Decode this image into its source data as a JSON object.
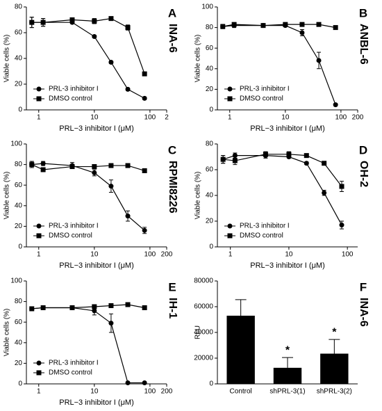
{
  "chart_data": [
    {
      "type": "line",
      "label": "A",
      "title": "INA-6",
      "xlabel": "PRL−3 inhibitor I (μM)",
      "ylabel": "Viable cells (%)",
      "xscale": "log",
      "xlim": [
        0.6,
        200
      ],
      "xticks": [
        1,
        10,
        100,
        {
          "value": 200,
          "label": "2"
        }
      ],
      "ylim": [
        0,
        80
      ],
      "yticks": [
        0,
        20,
        40,
        60,
        80
      ],
      "legend": "lower left",
      "x": [
        0.75,
        1.2,
        4,
        10,
        20,
        40,
        80
      ],
      "series": [
        {
          "name": "PRL-3 inhibitor I",
          "marker": "circle",
          "color": "#000",
          "values": [
            68,
            68,
            68,
            57,
            37,
            16,
            9
          ],
          "errors": [
            4,
            3,
            1,
            1,
            1,
            1,
            1
          ]
        },
        {
          "name": "DMSO control",
          "marker": "square",
          "color": "#000",
          "values": [
            68,
            68,
            70,
            69,
            71,
            64,
            28
          ],
          "errors": [
            4,
            3,
            1,
            2,
            1,
            2,
            1
          ]
        }
      ]
    },
    {
      "type": "line",
      "label": "B",
      "title": "ANBL-6",
      "xlabel": "PRL−3 inhibitor I (μM)",
      "ylabel": "Viable cells (%)",
      "xscale": "log",
      "xlim": [
        0.6,
        200
      ],
      "xticks": [
        1,
        10,
        100,
        200
      ],
      "ylim": [
        0,
        100
      ],
      "yticks": [
        0,
        20,
        40,
        60,
        80,
        100
      ],
      "legend": "lower left",
      "x": [
        0.75,
        1.2,
        4,
        10,
        20,
        40,
        80
      ],
      "series": [
        {
          "name": "PRL-3 inhibitor I",
          "marker": "circle",
          "color": "#000",
          "values": [
            81,
            82,
            82,
            82,
            75,
            48,
            5
          ],
          "errors": [
            2,
            2,
            1,
            1,
            3,
            8,
            1
          ]
        },
        {
          "name": "DMSO control",
          "marker": "square",
          "color": "#000",
          "values": [
            81,
            83,
            82,
            83,
            83,
            83,
            80
          ],
          "errors": [
            2,
            1,
            1,
            1,
            1,
            1,
            1
          ]
        }
      ]
    },
    {
      "type": "line",
      "label": "C",
      "title": "RPMI8226",
      "xlabel": "PRL−3 inhibitor I (μM)",
      "ylabel": "Viable cells (%)",
      "xscale": "log",
      "xlim": [
        0.6,
        200
      ],
      "xticks": [
        1,
        10,
        100,
        200
      ],
      "ylim": [
        0,
        100
      ],
      "yticks": [
        0,
        20,
        40,
        60,
        80,
        100
      ],
      "legend": "lower left",
      "x": [
        0.75,
        1.2,
        4,
        10,
        20,
        40,
        80
      ],
      "series": [
        {
          "name": "PRL-3 inhibitor I",
          "marker": "circle",
          "color": "#000",
          "values": [
            80,
            81,
            79,
            72,
            59,
            30,
            16
          ],
          "errors": [
            3,
            2,
            3,
            3,
            6,
            5,
            3
          ]
        },
        {
          "name": "DMSO control",
          "marker": "square",
          "color": "#000",
          "values": [
            80,
            75,
            78,
            78,
            79,
            79,
            74
          ],
          "errors": [
            3,
            2,
            2,
            2,
            1,
            1,
            2
          ]
        }
      ]
    },
    {
      "type": "line",
      "label": "D",
      "title": "OH-2",
      "xlabel": "PRL−3 inhibitor I (μM)",
      "ylabel": "Viable cells (%)",
      "xscale": "log",
      "xlim": [
        0.6,
        150
      ],
      "xticks": [
        1,
        10,
        100
      ],
      "ylim": [
        0,
        80
      ],
      "yticks": [
        0,
        20,
        40,
        60,
        80
      ],
      "legend": "lower left",
      "x": [
        0.75,
        1.2,
        4,
        10,
        20,
        40,
        80
      ],
      "series": [
        {
          "name": "PRL-3 inhibitor I",
          "marker": "circle",
          "color": "#000",
          "values": [
            68,
            71,
            71,
            70,
            65,
            42,
            17
          ],
          "errors": [
            3,
            2,
            2,
            1,
            1,
            2,
            3
          ]
        },
        {
          "name": "DMSO control",
          "marker": "square",
          "color": "#000",
          "values": [
            68,
            67,
            72,
            72,
            71,
            65,
            47
          ],
          "errors": [
            3,
            3,
            2,
            2,
            1,
            1,
            4
          ]
        }
      ]
    },
    {
      "type": "line",
      "label": "E",
      "title": "IH-1",
      "xlabel": "PRL−3 inhibitor I (μM)",
      "ylabel": "Viable cells (%)",
      "xscale": "log",
      "xlim": [
        0.6,
        200
      ],
      "xticks": [
        1,
        10,
        100,
        200
      ],
      "ylim": [
        0,
        100
      ],
      "yticks": [
        0,
        20,
        40,
        60,
        80,
        100
      ],
      "legend": "lower left",
      "x": [
        0.75,
        1.2,
        4,
        10,
        20,
        40,
        80
      ],
      "series": [
        {
          "name": "PRL-3 inhibitor I",
          "marker": "circle",
          "color": "#000",
          "values": [
            73,
            74,
            74,
            71,
            59,
            1,
            1
          ],
          "errors": [
            2,
            2,
            1,
            4,
            9,
            1,
            1
          ]
        },
        {
          "name": "DMSO control",
          "marker": "square",
          "color": "#000",
          "values": [
            73,
            74,
            74,
            75,
            76,
            77,
            74
          ],
          "errors": [
            2,
            2,
            1,
            2,
            2,
            1,
            1
          ]
        }
      ]
    },
    {
      "type": "bar",
      "label": "F",
      "title": "INA-6",
      "ylabel": "RLU",
      "color": "#000",
      "categories": [
        "Control",
        "shPRL-3(1)",
        "shPRL-3(2)"
      ],
      "values": [
        53000,
        12500,
        23500
      ],
      "errors": [
        12500,
        8000,
        11000
      ],
      "ylim": [
        0,
        80000
      ],
      "yticks": [
        0,
        20000,
        40000,
        60000,
        80000
      ],
      "annotations": [
        {
          "text": "*",
          "category": "shPRL-3(1)"
        },
        {
          "text": "*",
          "category": "shPRL-3(2)"
        }
      ]
    }
  ]
}
